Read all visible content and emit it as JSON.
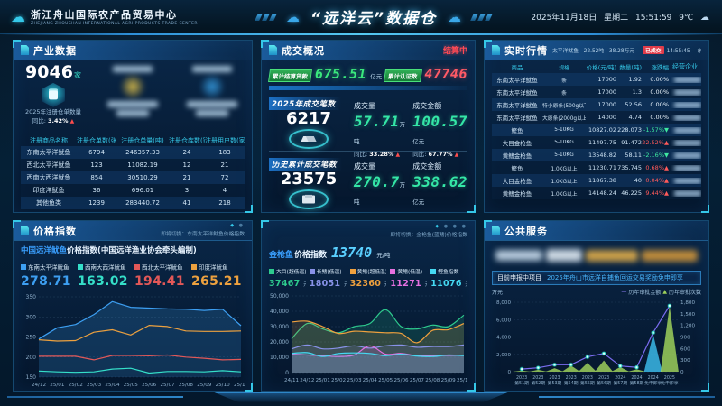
{
  "header": {
    "org_name": "浙江舟山国际农产品贸易中心",
    "org_name_en": "ZHEJIANG ZHOUSHAN INTERNATIONAL AGRI-PRODUCTS TRADE CENTER",
    "title": "“远洋云”数据仓",
    "date": "2025年11月18日",
    "weekday": "星期二",
    "time": "15:51:59",
    "temperature": "9℃"
  },
  "industry": {
    "title": "产业数据",
    "stat1": {
      "value": "9046",
      "unit": "家",
      "caption": "2025年注册仓单数量",
      "yoy_label": "同比:",
      "yoy_value": "3.42%"
    },
    "table": {
      "headers": [
        "注册商品名称",
        "注册仓单数(张)",
        "注册仓单量(吨)",
        "注册仓库数(家)",
        "注册用户数(家)"
      ],
      "rows": [
        [
          "东南太平洋鱿鱼",
          "6794",
          "246357.33",
          "24",
          "183"
        ],
        [
          "西北太平洋鱿鱼",
          "123",
          "11082.19",
          "12",
          "21"
        ],
        [
          "西南大西洋鱿鱼",
          "854",
          "30510.29",
          "21",
          "72"
        ],
        [
          "印度洋鱿鱼",
          "36",
          "696.01",
          "3",
          "4"
        ],
        [
          "其他鱼类",
          "1239",
          "283440.72",
          "41",
          "218"
        ]
      ]
    }
  },
  "deals": {
    "title": "成交概况",
    "status": "结算中",
    "badges": [
      {
        "label": "累计结算货款",
        "value": "675.51",
        "unit": "亿元"
      },
      {
        "label": "累计认证数",
        "value": "47746",
        "unit": ""
      }
    ],
    "year": {
      "label": "2025年成交笔数",
      "count": "6217",
      "volume_label": "成交量",
      "volume": "57.71",
      "volume_unit": "万吨",
      "volume_yoy_label": "同比:",
      "volume_yoy": "33.28%",
      "amount_label": "成交金额",
      "amount": "100.57",
      "amount_unit": "亿元",
      "amount_yoy_label": "同比:",
      "amount_yoy": "67.77%"
    },
    "history": {
      "label": "历史累计成交笔数",
      "count": "23575",
      "volume_label": "成交量",
      "volume": "270.7",
      "volume_unit": "万吨",
      "amount_label": "成交金额",
      "amount": "338.62",
      "amount_unit": "亿元"
    }
  },
  "market": {
    "title": "实时行情",
    "ticker_left": "太平洋鱿鱼 - 22.52吨 - 38.28万元 --",
    "ticker_badge": "已成交",
    "ticker_right": "14:55:45 -- 东南",
    "headers": [
      "商品",
      "规格",
      "价格(元/吨)",
      "数量(吨)",
      "涨跌幅",
      "经营企业"
    ],
    "rows": [
      {
        "name": "东南太平洋鱿鱼",
        "spec": "条",
        "price": "17000",
        "qty": "1.92",
        "chg": "0.00%",
        "dir": "flat"
      },
      {
        "name": "东南太平洋鱿鱼",
        "spec": "条",
        "price": "17000",
        "qty": "1.3",
        "chg": "0.00%",
        "dir": "flat"
      },
      {
        "name": "东南太平洋鱿鱼",
        "spec": "特小原条(500g以下)",
        "price": "17000",
        "qty": "52.56",
        "chg": "0.00%",
        "dir": "flat"
      },
      {
        "name": "东南太平洋鱿鱼",
        "spec": "大原条(2000g以上)",
        "price": "14000",
        "qty": "4.74",
        "chg": "0.00%",
        "dir": "flat"
      },
      {
        "name": "鲣鱼",
        "spec": "5-10KG",
        "price": "10827.02",
        "qty": "228.073",
        "chg": "-1.57%",
        "dir": "down"
      },
      {
        "name": "大目金枪鱼",
        "spec": "5-10KG",
        "price": "11497.75",
        "qty": "91.472",
        "chg": "22.52%",
        "dir": "up"
      },
      {
        "name": "黄鳍金枪鱼",
        "spec": "5-10KG",
        "price": "13548.82",
        "qty": "58.11",
        "chg": "-2.16%",
        "dir": "down"
      },
      {
        "name": "鲣鱼",
        "spec": "1.0KG以上",
        "price": "11230.71",
        "qty": "735.745",
        "chg": "0.68%",
        "dir": "up"
      },
      {
        "name": "大目金枪鱼",
        "spec": "1.0KG以上",
        "price": "11867.38",
        "qty": "40",
        "chg": "0.04%",
        "dir": "up"
      },
      {
        "name": "黄鳍金枪鱼",
        "spec": "1.0KG以上",
        "price": "14148.24",
        "qty": "46.225",
        "chg": "9.44%",
        "dir": "up"
      }
    ]
  },
  "price_index": {
    "title": "价格指数",
    "switch_hint": "即将切换：东南太平洋鱿鱼价格指数",
    "chart_title_hl": "中国远洋鱿鱼",
    "chart_title_rest": "价格指数(中国远洋渔业协会牵头编制)",
    "legend": [
      {
        "name": "东南太平洋鱿鱼",
        "value": "278.71",
        "color": "#3d9ff2"
      },
      {
        "name": "西南大西洋鱿鱼",
        "value": "163.02",
        "color": "#35dfc9"
      },
      {
        "name": "西北太平洋鱿鱼",
        "value": "194.41",
        "color": "#e25858"
      },
      {
        "name": "印度洋鱿鱼",
        "value": "265.21",
        "color": "#eda13f"
      }
    ]
  },
  "tuna_index": {
    "title_hl": "金枪鱼",
    "title_rest": "价格指数",
    "value": "13740",
    "unit": "元/吨",
    "switch_hint": "即将切换：金枪鱼(蓝鳍)价格指数",
    "legend": [
      {
        "name": "大目(超低温)",
        "value": "37467",
        "unit": "元/吨",
        "color": "#2ecb8e"
      },
      {
        "name": "长鳍(低温)",
        "value": "18051",
        "unit": "元/吨",
        "color": "#8892e8"
      },
      {
        "name": "黄鳍(超低温)",
        "value": "32360",
        "unit": "元/吨",
        "color": "#f0a13e"
      },
      {
        "name": "黄鳍(低温)",
        "value": "11271",
        "unit": "元/吨",
        "color": "#e570e0"
      },
      {
        "name": "鲣鱼指数",
        "value": "11076",
        "unit": "元/吨",
        "color": "#45d9f2"
      }
    ]
  },
  "public_service": {
    "title": "公共服务",
    "notice_label": "目前申报中项目",
    "notice_text": "2025年舟山市远洋自捕鱼回运交易奖励免申即享",
    "y_axis_label": "万元",
    "legend_line": "历年审批金额",
    "legend_tri": "历年审批次数"
  },
  "chart_data": [
    {
      "type": "line",
      "title": "中国远洋鱿鱼价格指数(中国远洋渔业协会牵头编制)",
      "x": [
        "24/12",
        "25/01",
        "25/02",
        "25/03",
        "25/04",
        "25/05",
        "25/06",
        "25/07",
        "25/08",
        "25/09",
        "25/10",
        "25/11"
      ],
      "ylim": [
        150,
        350
      ],
      "yticks": [
        150,
        200,
        250,
        300,
        350
      ],
      "legend_position": "top",
      "grid": true,
      "series": [
        {
          "name": "东南太平洋鱿鱼",
          "color": "#3d9ff2",
          "fill": true,
          "values": [
            245,
            273,
            281,
            306,
            338,
            324,
            322,
            320,
            319,
            316,
            319,
            278
          ]
        },
        {
          "name": "印度洋鱿鱼",
          "color": "#eda13f",
          "values": [
            243,
            240,
            241,
            262,
            268,
            255,
            279,
            276,
            265,
            264,
            264,
            265
          ]
        },
        {
          "name": "西北太平洋鱿鱼",
          "color": "#e25858",
          "values": [
            202,
            202,
            202,
            193,
            204,
            204,
            203,
            205,
            200,
            197,
            193,
            194
          ]
        },
        {
          "name": "西南大西洋鱿鱼",
          "color": "#35dfc9",
          "values": [
            165,
            163,
            162,
            163,
            170,
            172,
            160,
            164,
            164,
            163,
            166,
            163
          ]
        }
      ]
    },
    {
      "type": "area",
      "title": "金枪鱼价格指数",
      "x": [
        "24/11",
        "24/12",
        "25/01",
        "25/02",
        "25/03",
        "25/04",
        "25/05",
        "25/06",
        "25/07",
        "25/08",
        "25/09",
        "25/10"
      ],
      "ylim": [
        0,
        50000
      ],
      "yticks": [
        0,
        10000,
        20000,
        30000,
        40000,
        50000
      ],
      "grid": true,
      "series": [
        {
          "name": "大目(超低温)",
          "color": "#2ecb8e",
          "values": [
            22000,
            32000,
            28500,
            26000,
            30000,
            32000,
            41000,
            30000,
            28500,
            31000,
            30000,
            37500
          ]
        },
        {
          "name": "黄鳍(超低温)",
          "color": "#f0a13e",
          "values": [
            33000,
            33500,
            30000,
            25500,
            27000,
            26500,
            26000,
            25500,
            19500,
            27500,
            28000,
            32000
          ]
        },
        {
          "name": "长鳍(低温)",
          "color": "#8892e8",
          "values": [
            15500,
            18000,
            15500,
            16000,
            17500,
            16000,
            17500,
            18000,
            16500,
            17000,
            17000,
            18000
          ]
        },
        {
          "name": "黄鳍(低温)",
          "color": "#e570e0",
          "values": [
            12000,
            11500,
            11000,
            10500,
            11500,
            17500,
            12000,
            12500,
            11000,
            11000,
            11200,
            11271
          ]
        },
        {
          "name": "鲣鱼指数",
          "color": "#45d9f2",
          "values": [
            12500,
            13000,
            10500,
            12500,
            12800,
            12500,
            11000,
            12000,
            10800,
            10500,
            11500,
            11076
          ]
        }
      ]
    },
    {
      "type": "combo",
      "title": "公共服务审批",
      "categories": [
        "2023 第51期",
        "2023 第52期",
        "2023 第53期",
        "2023 第54期",
        "2023 第55期",
        "2023 第56期",
        "2024 第57期",
        "2024 第58期",
        "2024 免申即享",
        "2025 免申即享"
      ],
      "ylim_left": [
        0,
        8000
      ],
      "yticks_left": [
        0,
        2000,
        4000,
        6000,
        8000
      ],
      "ylim_right": [
        0,
        1800
      ],
      "yticks_right": [
        0,
        300,
        600,
        900,
        1200,
        1500,
        1800
      ],
      "ylabel_left": "万元",
      "line": {
        "name": "历年审批金额",
        "color": "#7a6cf0",
        "values": [
          300,
          450,
          800,
          800,
          1700,
          2100,
          650,
          500,
          4500,
          7600
        ]
      },
      "triangles": {
        "name": "历年审批次数",
        "values": [
          30,
          50,
          90,
          160,
          230,
          290,
          120,
          60,
          970,
          1700
        ],
        "colors": [
          "#9ccf5a",
          "#9ccf5a",
          "#9ccf5a",
          "#9ccf5a",
          "#9ccf5a",
          "#9ccf5a",
          "#9ccf5a",
          "#9ccf5a",
          "#3bb8e8",
          "#9ccf5a"
        ]
      }
    }
  ]
}
